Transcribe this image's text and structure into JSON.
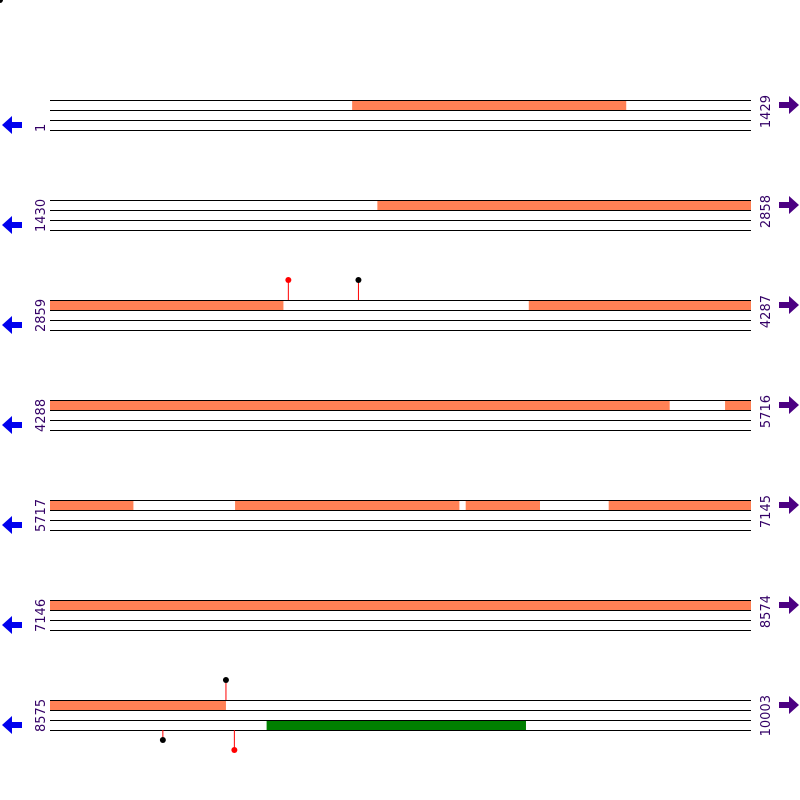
{
  "colors": {
    "line": "#000000",
    "feature": "#FF8155",
    "feature_alt": "#008000",
    "marker_red": "#FF0000",
    "marker_black": "#000000",
    "arrow_left": "#0000EE",
    "arrow_right": "#4B0082",
    "label": "#330066"
  },
  "rows": [
    {
      "start": "1",
      "end": "1429",
      "features": [
        {
          "track": 0,
          "from": 0.431,
          "to": 0.822,
          "color": "feature"
        }
      ],
      "markers": []
    },
    {
      "start": "1430",
      "end": "2858",
      "features": [
        {
          "track": 0,
          "from": 0.467,
          "to": 1.0,
          "color": "feature"
        }
      ],
      "markers": []
    },
    {
      "start": "2859",
      "end": "4287",
      "features": [
        {
          "track": 0,
          "from": 0.0,
          "to": 0.333,
          "color": "feature"
        },
        {
          "track": 0,
          "from": 0.683,
          "to": 1.0,
          "color": "feature"
        }
      ],
      "markers": [
        {
          "pos": 0.34,
          "direction": "up",
          "color": "marker_red"
        },
        {
          "pos": 0.44,
          "direction": "up",
          "color": "marker_black"
        }
      ]
    },
    {
      "start": "4288",
      "end": "5716",
      "features": [
        {
          "track": 0,
          "from": 0.0,
          "to": 0.884,
          "color": "feature"
        },
        {
          "track": 0,
          "from": 0.963,
          "to": 1.0,
          "color": "feature"
        }
      ],
      "markers": []
    },
    {
      "start": "5717",
      "end": "7145",
      "features": [
        {
          "track": 0,
          "from": 0.0,
          "to": 0.119,
          "color": "feature"
        },
        {
          "track": 0,
          "from": 0.264,
          "to": 0.584,
          "color": "feature"
        },
        {
          "track": 0,
          "from": 0.593,
          "to": 0.699,
          "color": "feature"
        },
        {
          "track": 0,
          "from": 0.797,
          "to": 1.0,
          "color": "feature"
        }
      ],
      "markers": []
    },
    {
      "start": "7146",
      "end": "8574",
      "features": [
        {
          "track": 0,
          "from": 0.0,
          "to": 1.0,
          "color": "feature"
        }
      ],
      "markers": []
    },
    {
      "start": "8575",
      "end": "10003",
      "features": [
        {
          "track": 0,
          "from": 0.0,
          "to": 0.251,
          "color": "feature"
        },
        {
          "track": 2,
          "from": 0.309,
          "to": 0.679,
          "color": "feature_alt"
        }
      ],
      "markers": [
        {
          "pos": 0.251,
          "direction": "up",
          "color": "marker_black"
        },
        {
          "pos": 0.161,
          "direction": "down",
          "color": "marker_black"
        },
        {
          "pos": 0.263,
          "direction": "down",
          "color": "marker_red"
        }
      ]
    }
  ]
}
